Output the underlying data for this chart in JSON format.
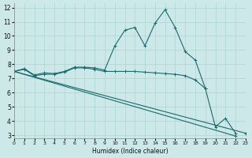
{
  "xlabel": "Humidex (Indice chaleur)",
  "bg_color": "#cce8e8",
  "line_color": "#1a6b6b",
  "grid_color": "#aad4d4",
  "xlim": [
    0,
    23
  ],
  "ylim": [
    2.8,
    12.3
  ],
  "xticks": [
    0,
    1,
    2,
    3,
    4,
    5,
    6,
    7,
    8,
    9,
    10,
    11,
    12,
    13,
    14,
    15,
    16,
    17,
    18,
    19,
    20,
    21,
    22,
    23
  ],
  "yticks": [
    3,
    4,
    5,
    6,
    7,
    8,
    9,
    10,
    11,
    12
  ],
  "lines": [
    {
      "x": [
        0,
        1,
        2,
        3,
        4,
        5,
        6,
        7,
        8,
        9,
        10,
        11,
        12,
        13,
        14,
        15,
        16,
        17,
        18,
        19,
        20,
        21,
        22
      ],
      "y": [
        7.5,
        7.7,
        7.25,
        7.4,
        7.35,
        7.5,
        7.8,
        7.8,
        7.75,
        7.6,
        9.3,
        10.4,
        10.6,
        9.3,
        10.9,
        11.85,
        10.6,
        8.9,
        8.3,
        6.3,
        3.6,
        4.2,
        3.15
      ]
    },
    {
      "x": [
        0,
        1,
        2,
        3,
        4,
        5,
        6,
        7,
        8,
        9,
        10,
        11,
        12,
        13,
        14,
        15,
        16,
        17,
        18,
        19
      ],
      "y": [
        7.5,
        7.65,
        7.2,
        7.3,
        7.3,
        7.45,
        7.75,
        7.75,
        7.65,
        7.5,
        7.5,
        7.5,
        7.5,
        7.45,
        7.4,
        7.35,
        7.3,
        7.2,
        6.9,
        6.3
      ]
    },
    {
      "x": [
        0,
        23
      ],
      "y": [
        7.5,
        3.15
      ]
    },
    {
      "x": [
        0,
        22
      ],
      "y": [
        7.5,
        2.95
      ]
    }
  ]
}
